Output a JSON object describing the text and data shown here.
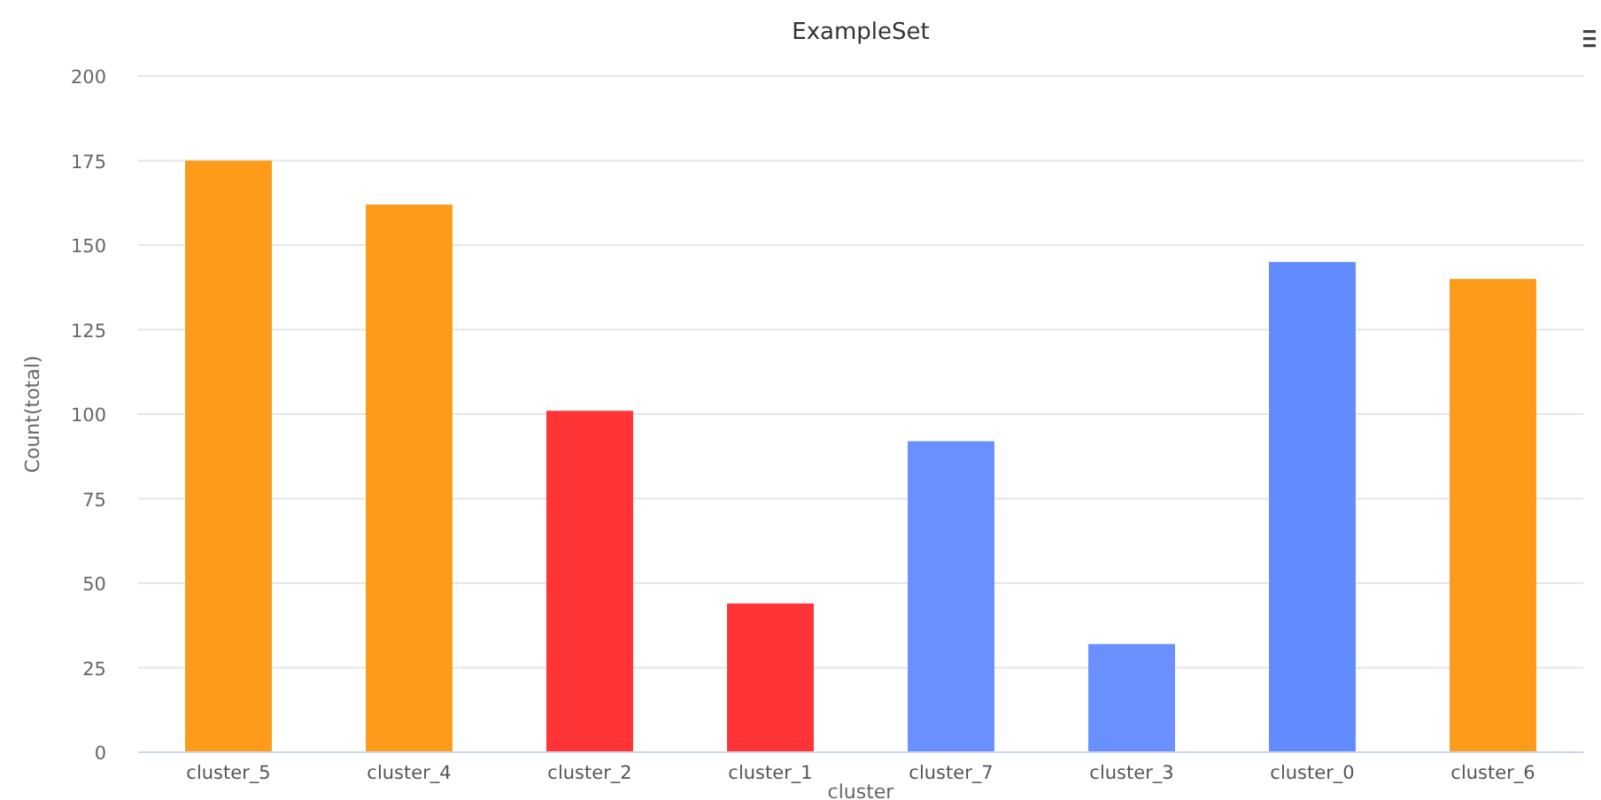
{
  "chart_data": {
    "type": "bar",
    "title": "ExampleSet",
    "xlabel": "cluster",
    "ylabel": "Count(total)",
    "categories": [
      "cluster_5",
      "cluster_4",
      "cluster_2",
      "cluster_1",
      "cluster_7",
      "cluster_3",
      "cluster_0",
      "cluster_6"
    ],
    "values": [
      175,
      162,
      101,
      44,
      92,
      32,
      145,
      140
    ],
    "colors": [
      "#fd9c1a",
      "#fd9c1a",
      "#ff3437",
      "#ff3437",
      "#6a90ff",
      "#6a90ff",
      "#628bff",
      "#fd9c1a"
    ],
    "ylim": [
      0,
      200
    ],
    "yticks": [
      0,
      25,
      50,
      75,
      100,
      125,
      150,
      175,
      200
    ],
    "grid": "y"
  }
}
